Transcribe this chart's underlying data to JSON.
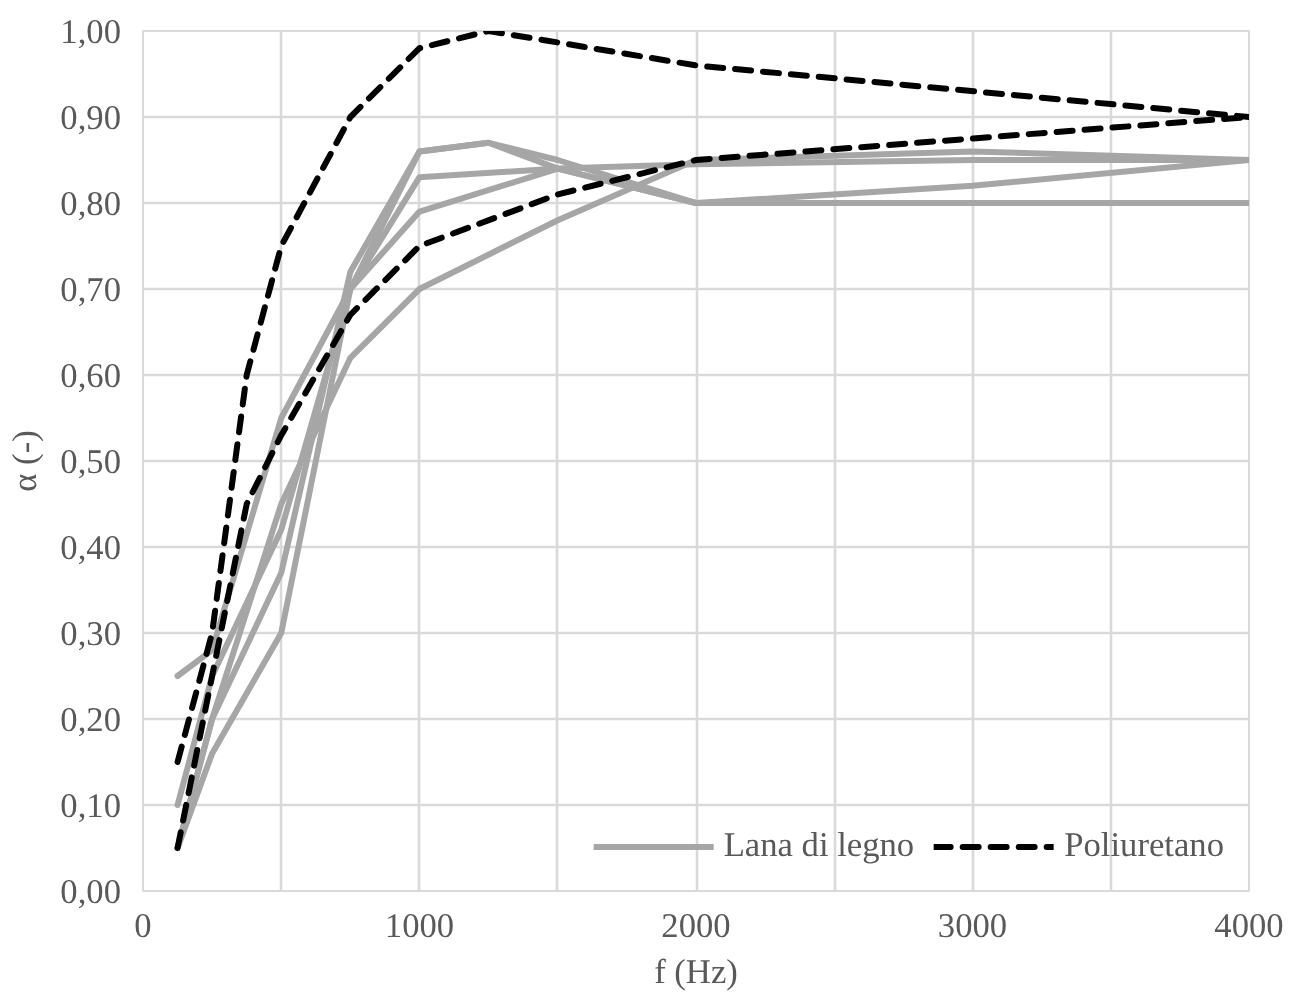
{
  "chart_data": {
    "type": "line",
    "xlabel": "f (Hz)",
    "ylabel": "α (-)",
    "series": [
      {
        "name": "Lana di legno",
        "color": "#a6a6a6",
        "x": [
          125,
          250,
          500,
          750,
          1000,
          1500,
          2000,
          3000,
          4000
        ],
        "values": [
          0.25,
          0.28,
          0.55,
          0.7,
          0.79,
          0.84,
          0.845,
          0.85,
          0.85
        ]
      },
      {
        "color": "#a6a6a6",
        "x": [
          125,
          250,
          500,
          750,
          1000,
          1500,
          2000,
          3000,
          4000
        ],
        "values": [
          0.1,
          0.25,
          0.42,
          0.7,
          0.83,
          0.84,
          0.8,
          0.82,
          0.85
        ]
      },
      {
        "color": "#a6a6a6",
        "x": [
          125,
          250,
          500,
          750,
          1000,
          1250,
          1500,
          2000,
          4000
        ],
        "values": [
          0.05,
          0.2,
          0.37,
          0.72,
          0.86,
          0.87,
          0.84,
          0.8,
          0.8
        ]
      },
      {
        "color": "#a6a6a6",
        "x": [
          125,
          250,
          500,
          750,
          1000,
          1250,
          1500,
          2000,
          4000
        ],
        "values": [
          0.05,
          0.16,
          0.3,
          0.7,
          0.86,
          0.87,
          0.85,
          0.8,
          0.8
        ]
      },
      {
        "color": "#a6a6a6",
        "x": [
          125,
          250,
          500,
          750,
          1000,
          1500,
          2000,
          3000,
          4000
        ],
        "values": [
          0.05,
          0.2,
          0.45,
          0.62,
          0.7,
          0.78,
          0.85,
          0.86,
          0.85
        ]
      },
      {
        "name": "Poliuretano",
        "color": "#000000",
        "line_style": "dashed",
        "x": [
          125,
          250,
          375,
          500,
          750,
          1000,
          1250,
          2000,
          4000
        ],
        "values": [
          0.15,
          0.3,
          0.6,
          0.75,
          0.9,
          0.98,
          1.0,
          0.96,
          0.9
        ]
      },
      {
        "color": "#000000",
        "line_style": "dashed",
        "x": [
          125,
          250,
          375,
          500,
          750,
          1000,
          1500,
          2000,
          4000
        ],
        "values": [
          0.05,
          0.25,
          0.45,
          0.53,
          0.67,
          0.75,
          0.81,
          0.85,
          0.9
        ]
      }
    ],
    "xlim": [
      0,
      4000
    ],
    "xticks": [
      0,
      {
        "value": 500,
        "label": null
      },
      1000,
      {
        "value": 1500,
        "label": null
      },
      2000,
      {
        "value": 2500,
        "label": null
      },
      3000,
      {
        "value": 3500,
        "label": null
      },
      4000
    ],
    "ylim": [
      0,
      1
    ],
    "yticks": [
      {
        "value": 0,
        "label": "0,00"
      },
      {
        "value": 0.1,
        "label": "0,10"
      },
      {
        "value": 0.2,
        "label": "0,20"
      },
      {
        "value": 0.3,
        "label": "0,30"
      },
      {
        "value": 0.4,
        "label": "0,40"
      },
      {
        "value": 0.5,
        "label": "0,50"
      },
      {
        "value": 0.6,
        "label": "0,60"
      },
      {
        "value": 0.7,
        "label": "0,70"
      },
      {
        "value": 0.8,
        "label": "0,80"
      },
      {
        "value": 0.9,
        "label": "0,90"
      },
      {
        "value": 1.0,
        "label": "1,00"
      }
    ],
    "grid": true,
    "legend": "bottom right",
    "line_style": "solid",
    "marker": "none"
  }
}
